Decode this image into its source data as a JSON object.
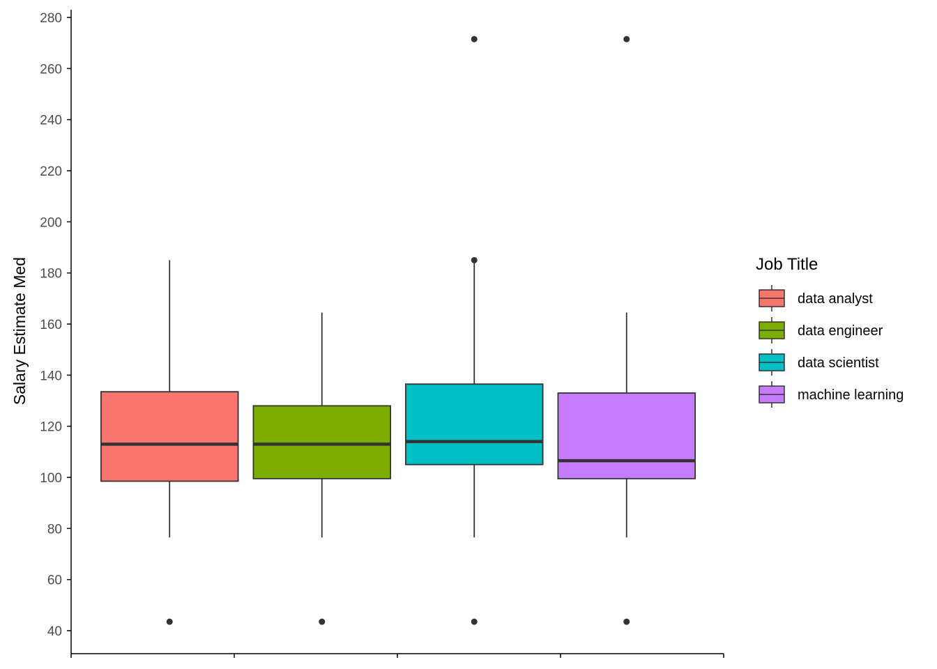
{
  "chart_data": {
    "type": "boxplot",
    "title": "",
    "xlabel": "",
    "ylabel": "Salary Estimate Med",
    "ylim": [
      31,
      283
    ],
    "y_ticks": [
      40,
      60,
      80,
      100,
      120,
      140,
      160,
      180,
      200,
      220,
      240,
      260,
      280
    ],
    "grid": false,
    "legend": {
      "title": "Job Title",
      "position": "right"
    },
    "series": [
      {
        "name": "data analyst",
        "color": "#F8766D",
        "whisker_low": 76.5,
        "q1": 98.5,
        "median": 113,
        "q3": 133.5,
        "whisker_high": 185,
        "outliers": [
          43.5
        ]
      },
      {
        "name": "data engineer",
        "color": "#7CAE00",
        "whisker_low": 76.5,
        "q1": 99.5,
        "median": 113,
        "q3": 128,
        "whisker_high": 164.5,
        "outliers": [
          43.5
        ]
      },
      {
        "name": "data scientist",
        "color": "#00BFC4",
        "whisker_low": 76.5,
        "q1": 105,
        "median": 114,
        "q3": 136.5,
        "whisker_high": 184,
        "outliers": [
          43.5,
          185,
          271.5
        ]
      },
      {
        "name": "machine learning",
        "color": "#C77CFF",
        "whisker_low": 76.5,
        "q1": 99.5,
        "median": 106.5,
        "q3": 133,
        "whisker_high": 164.5,
        "outliers": [
          43.5,
          271.5
        ]
      }
    ]
  }
}
